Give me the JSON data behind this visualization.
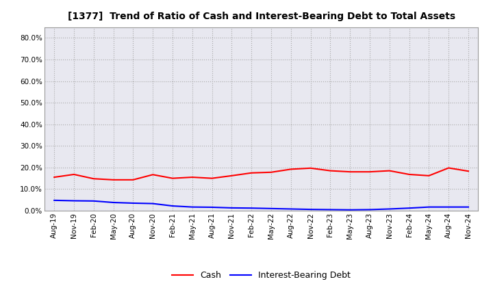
{
  "title": "[1377]  Trend of Ratio of Cash and Interest-Bearing Debt to Total Assets",
  "x_labels": [
    "Aug-19",
    "Nov-19",
    "Feb-20",
    "May-20",
    "Aug-20",
    "Nov-20",
    "Feb-21",
    "May-21",
    "Aug-21",
    "Nov-21",
    "Feb-22",
    "May-22",
    "Aug-22",
    "Nov-22",
    "Feb-23",
    "May-23",
    "Aug-23",
    "Nov-23",
    "Feb-24",
    "May-24",
    "Aug-24",
    "Nov-24"
  ],
  "cash": [
    0.155,
    0.168,
    0.148,
    0.143,
    0.143,
    0.167,
    0.15,
    0.155,
    0.15,
    0.162,
    0.175,
    0.178,
    0.192,
    0.197,
    0.185,
    0.18,
    0.18,
    0.185,
    0.168,
    0.162,
    0.198,
    0.183
  ],
  "ibd": [
    0.048,
    0.046,
    0.045,
    0.038,
    0.035,
    0.033,
    0.022,
    0.017,
    0.016,
    0.013,
    0.012,
    0.01,
    0.008,
    0.006,
    0.005,
    0.004,
    0.005,
    0.008,
    0.012,
    0.017,
    0.017,
    0.017
  ],
  "cash_color": "#ff0000",
  "ibd_color": "#0000ff",
  "ylim": [
    0.0,
    0.85
  ],
  "yticks": [
    0.0,
    0.1,
    0.2,
    0.3,
    0.4,
    0.5,
    0.6,
    0.7,
    0.8
  ],
  "background_color": "#ffffff",
  "plot_bg_color": "#e8e8f0",
  "grid_color": "#aaaaaa",
  "legend_cash": "Cash",
  "legend_ibd": "Interest-Bearing Debt",
  "title_fontsize": 10,
  "tick_fontsize": 7.5
}
